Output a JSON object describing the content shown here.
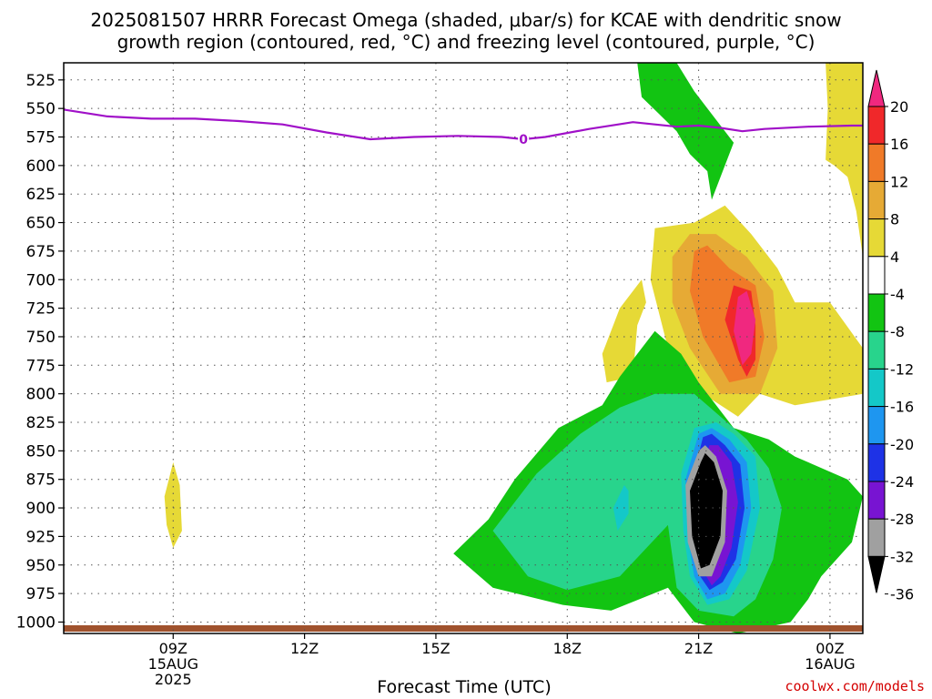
{
  "title_line1": "2025081507 HRRR Forecast Omega (shaded, μbar/s) for KCAE with dendritic snow",
  "title_line2": "growth region (contoured, red, °C) and freezing level (contoured, purple, °C)",
  "credit": "coolwx.com/models",
  "chart_data": {
    "type": "heatmap",
    "xlabel": "Forecast Time (UTC)",
    "ylabel": "",
    "x_range_hours_utc": [
      6.5,
      24.75
    ],
    "y_range_hpa": [
      510,
      1010
    ],
    "y_ticks": [
      525,
      550,
      575,
      600,
      625,
      650,
      675,
      700,
      725,
      750,
      775,
      800,
      825,
      850,
      875,
      900,
      925,
      950,
      975,
      1000
    ],
    "x_ticks": [
      {
        "hour": 9,
        "labels": [
          "09Z",
          "15AUG",
          "2025"
        ]
      },
      {
        "hour": 12,
        "labels": [
          "12Z"
        ]
      },
      {
        "hour": 15,
        "labels": [
          "15Z"
        ]
      },
      {
        "hour": 18,
        "labels": [
          "18Z"
        ]
      },
      {
        "hour": 21,
        "labels": [
          "21Z"
        ]
      },
      {
        "hour": 24,
        "labels": [
          "00Z",
          "16AUG"
        ]
      }
    ],
    "grid": true,
    "colorbar": {
      "labels": [
        "20",
        "16",
        "12",
        "8",
        "4",
        "-4",
        "-8",
        "-12",
        "-16",
        "-20",
        "-24",
        "-28",
        "-32",
        "-36"
      ],
      "colors": [
        "#f0287f",
        "#f0282a",
        "#f07a28",
        "#e6aa35",
        "#e6d936",
        "#ffffff",
        "#12c412",
        "#28d48c",
        "#14c8c8",
        "#1e96f0",
        "#1e32e6",
        "#7814d2",
        "#a0a0a0",
        "#000000"
      ]
    },
    "freezing_level": {
      "label": "0",
      "color": "#a010c8",
      "x": [
        6.5,
        7.5,
        8.5,
        9.5,
        10.5,
        11.5,
        12.5,
        13.5,
        14.5,
        15.5,
        16.5,
        17,
        17.5,
        18.5,
        19.5,
        20.5,
        21,
        21.5,
        22,
        22.5,
        23.5,
        24.5,
        24.75
      ],
      "y": [
        551,
        557,
        559,
        559,
        561,
        564,
        571,
        577,
        575,
        574,
        575,
        577,
        575,
        568,
        562,
        566,
        565,
        567,
        570,
        568,
        566,
        565,
        565
      ]
    },
    "regions": [
      {
        "value": "4",
        "color": "#e6d936",
        "points": [
          [
            23.9,
            510
          ],
          [
            24.75,
            510
          ],
          [
            24.75,
            680
          ],
          [
            24.6,
            640
          ],
          [
            24.4,
            610
          ],
          [
            24.1,
            600
          ],
          [
            23.9,
            595
          ],
          [
            23.95,
            550
          ]
        ]
      },
      {
        "value": "4",
        "color": "#e6d936",
        "points": [
          [
            19.6,
            705
          ],
          [
            19.2,
            725
          ],
          [
            18.8,
            765
          ],
          [
            18.9,
            790
          ],
          [
            19.5,
            785
          ],
          [
            19.6,
            740
          ],
          [
            19.8,
            720
          ],
          [
            19.7,
            700
          ]
        ]
      },
      {
        "value": "4",
        "color": "#e6d936",
        "points": [
          [
            9.0,
            860
          ],
          [
            9.15,
            880
          ],
          [
            9.2,
            920
          ],
          [
            9.0,
            935
          ],
          [
            8.85,
            915
          ],
          [
            8.8,
            890
          ]
        ]
      },
      {
        "value": "4",
        "color": "#e6d936",
        "points": [
          [
            20.9,
            650
          ],
          [
            20.0,
            655
          ],
          [
            19.9,
            700
          ],
          [
            20.3,
            760
          ],
          [
            20.9,
            795
          ],
          [
            21.9,
            820
          ],
          [
            22.4,
            800
          ],
          [
            23.2,
            810
          ],
          [
            24.0,
            805
          ],
          [
            24.75,
            800
          ],
          [
            24.75,
            760
          ],
          [
            24.0,
            720
          ],
          [
            23.2,
            720
          ],
          [
            22.8,
            690
          ],
          [
            22.2,
            660
          ],
          [
            21.6,
            635
          ]
        ]
      },
      {
        "value": "8",
        "color": "#e6aa35",
        "points": [
          [
            20.8,
            660
          ],
          [
            20.4,
            680
          ],
          [
            20.4,
            720
          ],
          [
            20.8,
            760
          ],
          [
            21.5,
            800
          ],
          [
            22.4,
            800
          ],
          [
            22.8,
            760
          ],
          [
            22.7,
            710
          ],
          [
            22.1,
            680
          ],
          [
            21.4,
            660
          ]
        ]
      },
      {
        "value": "12",
        "color": "#f07a28",
        "points": [
          [
            20.9,
            675
          ],
          [
            20.8,
            710
          ],
          [
            21.1,
            750
          ],
          [
            21.7,
            790
          ],
          [
            22.3,
            785
          ],
          [
            22.5,
            750
          ],
          [
            22.3,
            705
          ],
          [
            21.7,
            690
          ],
          [
            21.2,
            670
          ]
        ]
      },
      {
        "value": "16",
        "color": "#f0282a",
        "points": [
          [
            21.8,
            705
          ],
          [
            21.6,
            735
          ],
          [
            21.9,
            770
          ],
          [
            22.1,
            785
          ],
          [
            22.3,
            770
          ],
          [
            22.3,
            740
          ],
          [
            22.2,
            710
          ]
        ]
      },
      {
        "value": "20",
        "color": "#f0287f",
        "points": [
          [
            21.9,
            715
          ],
          [
            21.8,
            745
          ],
          [
            22.0,
            775
          ],
          [
            22.2,
            765
          ],
          [
            22.3,
            735
          ],
          [
            22.1,
            710
          ]
        ]
      },
      {
        "value": "-4",
        "color": "#12c412",
        "points": [
          [
            19.6,
            510
          ],
          [
            20.5,
            510
          ],
          [
            20.9,
            535
          ],
          [
            21.8,
            580
          ],
          [
            21.3,
            630
          ],
          [
            21.2,
            605
          ],
          [
            20.8,
            590
          ],
          [
            20.5,
            570
          ],
          [
            20.1,
            555
          ],
          [
            19.7,
            540
          ]
        ]
      },
      {
        "value": "-4",
        "color": "#12c412",
        "points": [
          [
            20.0,
            745
          ],
          [
            19.2,
            785
          ],
          [
            18.8,
            810
          ],
          [
            17.8,
            830
          ],
          [
            16.8,
            875
          ],
          [
            16.2,
            910
          ],
          [
            15.4,
            940
          ],
          [
            16.3,
            970
          ],
          [
            17.9,
            985
          ],
          [
            19.0,
            990
          ],
          [
            20.3,
            970
          ],
          [
            20.9,
            1000
          ],
          [
            21.9,
            1010
          ],
          [
            23.1,
            1000
          ],
          [
            23.5,
            980
          ],
          [
            23.8,
            960
          ],
          [
            24.5,
            930
          ],
          [
            24.75,
            890
          ],
          [
            24.4,
            875
          ],
          [
            23.2,
            855
          ],
          [
            22.6,
            840
          ],
          [
            21.8,
            830
          ],
          [
            21.6,
            820
          ],
          [
            21.0,
            790
          ],
          [
            20.6,
            765
          ]
        ]
      },
      {
        "value": "-8",
        "color": "#28d48c",
        "points": [
          [
            20.0,
            800
          ],
          [
            19.2,
            812
          ],
          [
            18.3,
            835
          ],
          [
            17.3,
            870
          ],
          [
            16.3,
            920
          ],
          [
            17.1,
            960
          ],
          [
            18.0,
            972
          ],
          [
            19.2,
            960
          ],
          [
            20.3,
            915
          ],
          [
            20.5,
            970
          ],
          [
            21.0,
            990
          ],
          [
            21.8,
            995
          ],
          [
            22.3,
            980
          ],
          [
            22.7,
            945
          ],
          [
            22.9,
            900
          ],
          [
            22.6,
            865
          ],
          [
            22.1,
            840
          ],
          [
            21.5,
            820
          ],
          [
            20.9,
            800
          ]
        ]
      },
      {
        "value": "-12",
        "color": "#14c8c8",
        "points": [
          [
            20.9,
            830
          ],
          [
            20.6,
            870
          ],
          [
            20.65,
            920
          ],
          [
            20.8,
            960
          ],
          [
            21.2,
            985
          ],
          [
            21.7,
            980
          ],
          [
            22.1,
            955
          ],
          [
            22.4,
            900
          ],
          [
            22.3,
            855
          ],
          [
            21.8,
            835
          ],
          [
            21.4,
            825
          ]
        ]
      },
      {
        "value": "-12",
        "color": "#14c8c8",
        "points": [
          [
            19.3,
            880
          ],
          [
            19.05,
            900
          ],
          [
            19.15,
            920
          ],
          [
            19.4,
            905
          ],
          [
            19.4,
            885
          ]
        ]
      },
      {
        "value": "-16",
        "color": "#1e96f0",
        "points": [
          [
            21.0,
            835
          ],
          [
            20.7,
            875
          ],
          [
            20.75,
            925
          ],
          [
            20.9,
            960
          ],
          [
            21.2,
            980
          ],
          [
            21.6,
            975
          ],
          [
            21.95,
            950
          ],
          [
            22.2,
            900
          ],
          [
            22.1,
            860
          ],
          [
            21.7,
            840
          ],
          [
            21.3,
            830
          ]
        ]
      },
      {
        "value": "-20",
        "color": "#1e32e6",
        "points": [
          [
            21.1,
            838
          ],
          [
            20.85,
            875
          ],
          [
            20.85,
            925
          ],
          [
            21.0,
            958
          ],
          [
            21.25,
            972
          ],
          [
            21.55,
            965
          ],
          [
            21.85,
            945
          ],
          [
            22.05,
            900
          ],
          [
            21.95,
            862
          ],
          [
            21.6,
            845
          ],
          [
            21.3,
            835
          ]
        ]
      },
      {
        "value": "-24",
        "color": "#7814d2",
        "points": [
          [
            21.25,
            845
          ],
          [
            20.95,
            880
          ],
          [
            20.95,
            925
          ],
          [
            21.1,
            955
          ],
          [
            21.3,
            968
          ],
          [
            21.5,
            960
          ],
          [
            21.75,
            935
          ],
          [
            21.9,
            895
          ],
          [
            21.75,
            860
          ],
          [
            21.45,
            845
          ]
        ]
      },
      {
        "value": "-32",
        "color": "#a0a0a0",
        "points": [
          [
            21.0,
            850
          ],
          [
            20.7,
            880
          ],
          [
            20.75,
            930
          ],
          [
            21.0,
            960
          ],
          [
            21.3,
            960
          ],
          [
            21.6,
            930
          ],
          [
            21.65,
            885
          ],
          [
            21.4,
            855
          ],
          [
            21.15,
            845
          ]
        ]
      },
      {
        "value": "-36",
        "color": "#000000",
        "points": [
          [
            21.05,
            860
          ],
          [
            20.8,
            885
          ],
          [
            20.85,
            925
          ],
          [
            21.05,
            953
          ],
          [
            21.25,
            950
          ],
          [
            21.5,
            925
          ],
          [
            21.55,
            885
          ],
          [
            21.35,
            860
          ],
          [
            21.15,
            852
          ]
        ]
      }
    ]
  }
}
